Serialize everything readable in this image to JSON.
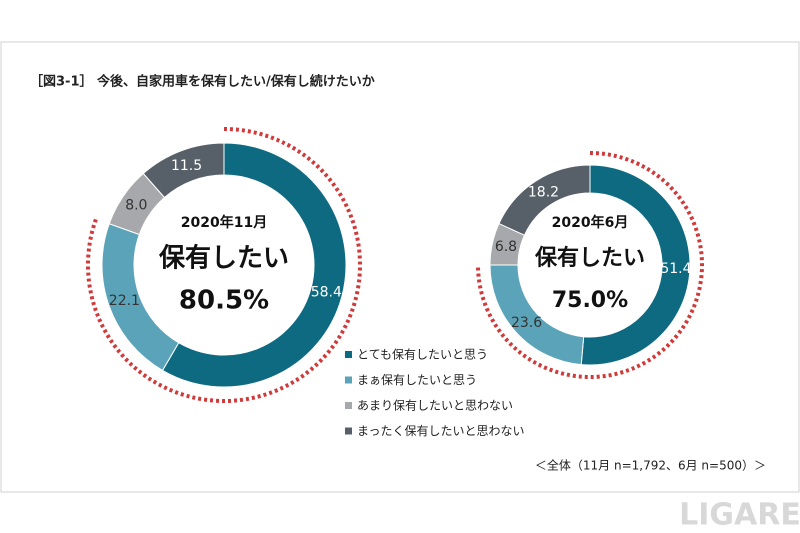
{
  "title": "［図3-1］ 今後、自家用車を保有したい/保有し続けたいか",
  "footnote": "＜全体（11月 n=1,792、6月 n=500）＞",
  "watermark": "LIGARE",
  "chart_data": [
    {
      "type": "donut",
      "center_title": "2020年11月",
      "center_label": "保有したい",
      "center_value": "80.5%",
      "categories": [
        "とても保有したいと思う",
        "まぁ保有したいと思う",
        "あまり保有したいと思わない",
        "まったく保有したいと思わない"
      ],
      "values": [
        58.4,
        22.1,
        8.0,
        11.5
      ],
      "value_labels": [
        "58.4",
        "22.1",
        "8.0",
        "11.5"
      ],
      "colors": [
        "#0e6a80",
        "#5ba3b8",
        "#a6a8ab",
        "#576069"
      ]
    },
    {
      "type": "donut",
      "center_title": "2020年6月",
      "center_label": "保有したい",
      "center_value": "75.0%",
      "categories": [
        "とても保有したいと思う",
        "まぁ保有したいと思う",
        "あまり保有したいと思わない",
        "まったく保有したいと思わない"
      ],
      "values": [
        51.4,
        23.6,
        6.8,
        18.2
      ],
      "value_labels": [
        "51.4",
        "23.6",
        "6.8",
        "18.2"
      ],
      "colors": [
        "#0e6a80",
        "#5ba3b8",
        "#a6a8ab",
        "#576069"
      ]
    }
  ]
}
